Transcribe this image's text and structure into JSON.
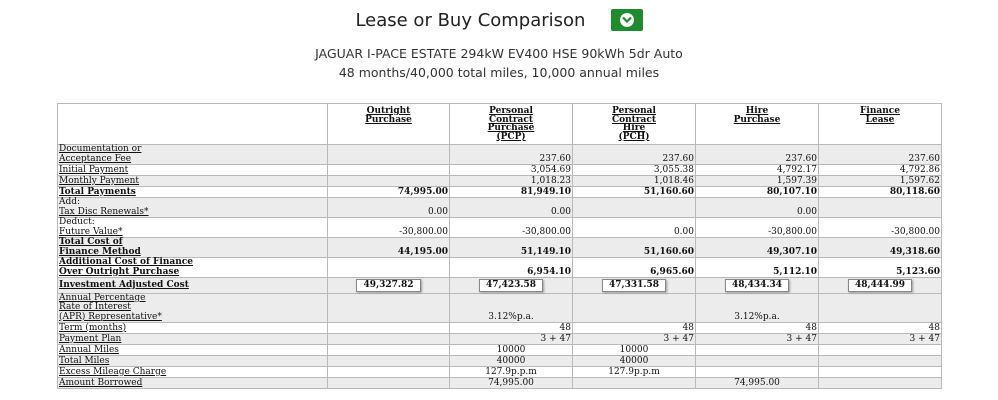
{
  "header": {
    "title": "Lease or Buy Comparison",
    "vehicle": "JAGUAR I-PACE ESTATE 294kW EV400 HSE 90kWh 5dr Auto",
    "terms": "48 months/40,000 total miles, 10,000 annual miles"
  },
  "colors": {
    "toggle_button": "#1f8a2e",
    "row_shade": "#ececec",
    "grid": "#b9b9b9"
  },
  "icons": {
    "toggle": "chevron-down-icon"
  },
  "table": {
    "columns": [
      [
        "Outright",
        "Purchase"
      ],
      [
        "Personal",
        "Contract",
        "Purchase",
        "(PCP)"
      ],
      [
        "Personal",
        "Contract",
        "Hire",
        "(PCH)"
      ],
      [
        "Hire",
        "Purchase"
      ],
      [
        "Finance",
        "Lease"
      ]
    ],
    "rows": {
      "documentation_fee": {
        "label1": "Documentation or",
        "label2": "Acceptance Fee",
        "v": [
          "",
          "237.60",
          "237.60",
          "237.60",
          "237.60"
        ]
      },
      "initial_payment": {
        "label": "Initial Payment",
        "v": [
          "",
          "3,054.69",
          "3,055.38",
          "4,792.17",
          "4,792.86"
        ]
      },
      "monthly_payment": {
        "label": "Monthly Payment",
        "v": [
          "",
          "1,018.23",
          "1,018.46",
          "1,597.39",
          "1,597.62"
        ]
      },
      "total_payments": {
        "label": "Total Payments",
        "v": [
          "74,995.00",
          "81,949.10",
          "51,160.60",
          "80,107.10",
          "80,118.60"
        ]
      },
      "tax_disc": {
        "label1": "Add:",
        "label2": "Tax Disc Renewals*",
        "v": [
          "0.00",
          "0.00",
          "",
          "0.00",
          ""
        ]
      },
      "future_value": {
        "label1": "Deduct:",
        "label2": "Future Value*",
        "v": [
          "-30,800.00",
          "-30,800.00",
          "0.00",
          "-30,800.00",
          "-30,800.00"
        ]
      },
      "total_cost": {
        "label1": "Total Cost of",
        "label2": "Finance Method",
        "v": [
          "44,195.00",
          "51,149.10",
          "51,160.60",
          "49,307.10",
          "49,318.60"
        ]
      },
      "additional_cost": {
        "label1": "Additional Cost of Finance",
        "label2": "Over Outright Purchase",
        "v": [
          "",
          "6,954.10",
          "6,965.60",
          "5,112.10",
          "5,123.60"
        ]
      },
      "investment_adjusted": {
        "label": "Investment Adjusted Cost",
        "v": [
          "49,327.82",
          "47,423.58",
          "47,331.58",
          "48,434.34",
          "48,444.99"
        ]
      },
      "apr": {
        "label1": "Annual Percentage",
        "label2": "Rate of Interest",
        "label3": "(APR) Representative*",
        "v": [
          "",
          "3.12%p.a.",
          "",
          "3.12%p.a.",
          ""
        ]
      },
      "term": {
        "label": "Term (months)",
        "v": [
          "",
          "48",
          "48",
          "48",
          "48"
        ]
      },
      "payment_plan": {
        "label": "Payment Plan",
        "v": [
          "",
          "3 + 47",
          "3 + 47",
          "3 + 47",
          "3 + 47"
        ]
      },
      "annual_miles": {
        "label": "Annual Miles",
        "v": [
          "",
          "10000",
          "10000",
          "",
          ""
        ]
      },
      "total_miles": {
        "label": "Total Miles",
        "v": [
          "",
          "40000",
          "40000",
          "",
          ""
        ]
      },
      "excess_mileage": {
        "label": "Excess Mileage Charge",
        "v": [
          "",
          "127.9p.p.m",
          "127.9p.p.m",
          "",
          ""
        ]
      },
      "amount_borrowed": {
        "label": "Amount Borrowed",
        "v": [
          "",
          "74,995.00",
          "",
          "74,995.00",
          ""
        ]
      }
    }
  }
}
